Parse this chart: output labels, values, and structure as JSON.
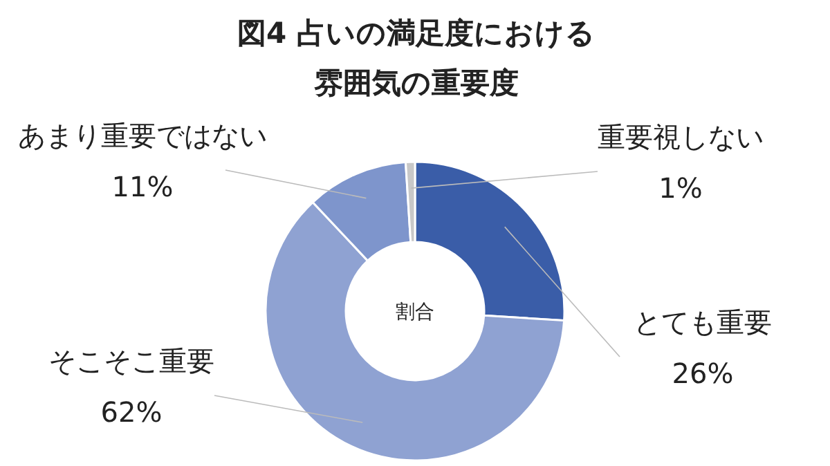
{
  "chart_data": {
    "type": "donut",
    "title": "図4 占いの満足度における雰囲気の重要度",
    "categories": [
      "とても重要",
      "そこそこ重要",
      "あまり重要ではない",
      "重要視しない"
    ],
    "values": [
      26,
      62,
      11,
      1
    ],
    "value_labels": [
      "26%",
      "62%",
      "11%",
      "1%"
    ],
    "colors": [
      "#3a5da8",
      "#8fa2d2",
      "#7e95cc",
      "#c8c8c8"
    ],
    "annotations": [
      "割合"
    ]
  }
}
